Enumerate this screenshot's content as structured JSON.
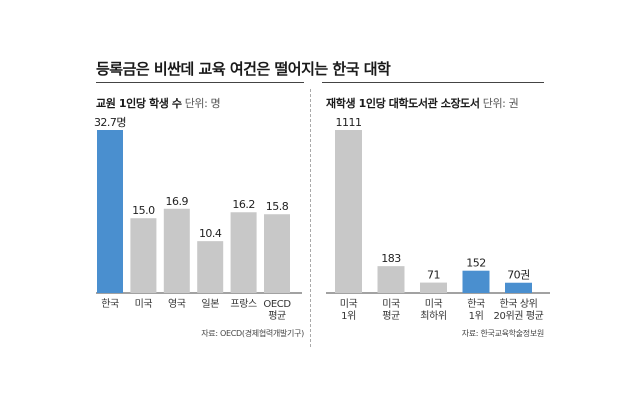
{
  "headline": "등록금은 비싼데 교육 여건은 떨어지는 한국 대학",
  "colors": {
    "highlight": "#4a8fcf",
    "bar": "#c8c8c8",
    "axis": "#444444"
  },
  "chart_data": [
    {
      "type": "bar",
      "title": "교원 1인당 학생 수",
      "unit_label": "단위: 명",
      "categories": [
        "한국",
        "미국",
        "영국",
        "일본",
        "프랑스",
        "OECD\n평균"
      ],
      "values": [
        32.7,
        15.0,
        16.9,
        10.4,
        16.2,
        15.8
      ],
      "value_labels": [
        "32.7명",
        "15.0",
        "16.9",
        "10.4",
        "16.2",
        "15.8"
      ],
      "highlight": [
        0
      ],
      "ylim": [
        0,
        32.7
      ],
      "source": "자료: OECD(경제협력개발기구)"
    },
    {
      "type": "bar",
      "title": "재학생 1인당 대학도서관 소장도서",
      "unit_label": "단위: 권",
      "categories": [
        "미국\n1위",
        "미국\n평균",
        "미국\n최하위",
        "한국\n1위",
        "한국 상위\n20위권 평균"
      ],
      "values": [
        1111,
        183,
        71,
        152,
        70
      ],
      "value_labels": [
        "1111",
        "183",
        "71",
        "152",
        "70권"
      ],
      "highlight": [
        3,
        4
      ],
      "ylim": [
        0,
        1111
      ],
      "source": "자료: 한국교육학술정보원"
    }
  ]
}
